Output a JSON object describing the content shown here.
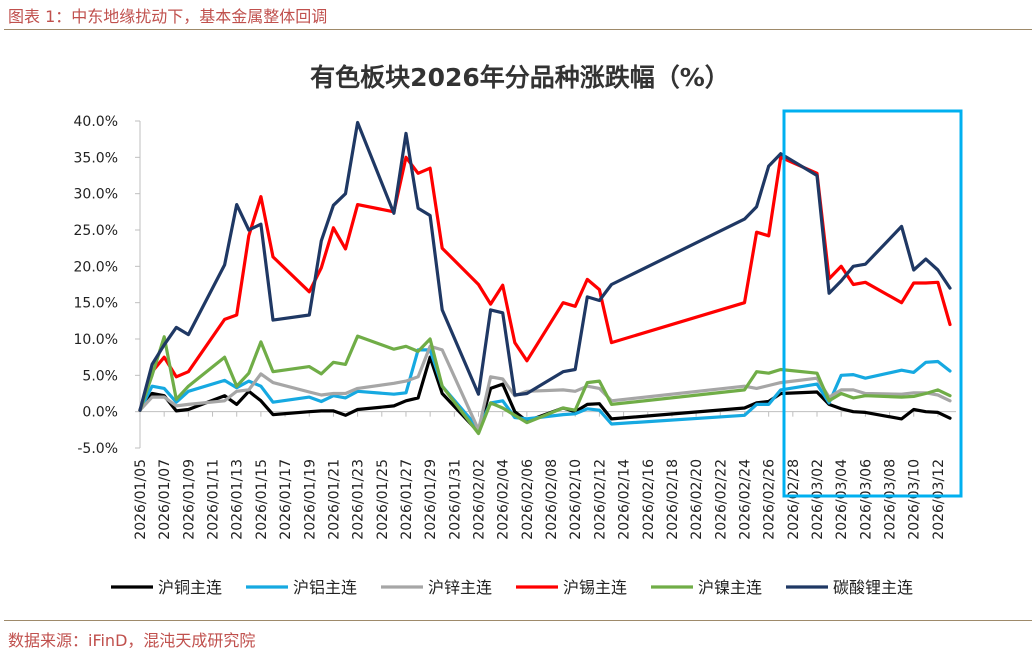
{
  "figure_title": "图表 1：中东地缘扰动下，基本金属整体回调",
  "source": "数据来源：iFinD，混沌天成研究院",
  "chart_data": {
    "type": "line",
    "title": "有色板块2026年分品种涨跌幅（%）",
    "xlabel": "",
    "ylabel": "",
    "ylim": [
      -5,
      40
    ],
    "y_ticks": [
      "40.0%",
      "35.0%",
      "30.0%",
      "25.0%",
      "20.0%",
      "15.0%",
      "10.0%",
      "5.0%",
      "0.0%",
      "-5.0%"
    ],
    "x_ticks": [
      "2026/01/05",
      "2026/01/07",
      "2026/01/09",
      "2026/01/11",
      "2026/01/13",
      "2026/01/15",
      "2026/01/17",
      "2026/01/19",
      "2026/01/21",
      "2026/01/23",
      "2026/01/25",
      "2026/01/27",
      "2026/01/29",
      "2026/01/31",
      "2026/02/02",
      "2026/02/04",
      "2026/02/06",
      "2026/02/08",
      "2026/02/10",
      "2026/02/12",
      "2026/02/14",
      "2026/02/16",
      "2026/02/18",
      "2026/02/20",
      "2026/02/22",
      "2026/02/24",
      "2026/02/26",
      "2026/02/28",
      "2026/03/02",
      "2026/03/04",
      "2026/03/06",
      "2026/03/08",
      "2026/03/10",
      "2026/03/12"
    ],
    "x_dates": [
      "2026/01/05",
      "2026/01/06",
      "2026/01/07",
      "2026/01/08",
      "2026/01/09",
      "2026/01/12",
      "2026/01/13",
      "2026/01/14",
      "2026/01/15",
      "2026/01/16",
      "2026/01/19",
      "2026/01/20",
      "2026/01/21",
      "2026/01/22",
      "2026/01/23",
      "2026/01/26",
      "2026/01/27",
      "2026/01/28",
      "2026/01/29",
      "2026/01/30",
      "2026/02/02",
      "2026/02/03",
      "2026/02/04",
      "2026/02/05",
      "2026/02/06",
      "2026/02/09",
      "2026/02/10",
      "2026/02/11",
      "2026/02/12",
      "2026/02/13",
      "2026/02/24",
      "2026/02/25",
      "2026/02/26",
      "2026/02/27",
      "2026/03/02",
      "2026/03/03",
      "2026/03/04",
      "2026/03/05",
      "2026/03/06",
      "2026/03/09",
      "2026/03/10",
      "2026/03/11",
      "2026/03/12",
      "2026/03/13"
    ],
    "series": [
      {
        "name": "沪铜主连",
        "color": "#000000",
        "values": [
          0.2,
          2.5,
          2.2,
          0.1,
          0.3,
          2.2,
          1.0,
          2.8,
          1.5,
          -0.4,
          0.0,
          0.1,
          0.1,
          -0.5,
          0.3,
          0.8,
          1.5,
          1.9,
          7.5,
          2.5,
          -2.8,
          3.2,
          3.8,
          0.0,
          -1.3,
          0.5,
          0.0,
          1.0,
          1.1,
          -1.0,
          0.5,
          1.2,
          1.4,
          2.5,
          2.7,
          1.0,
          0.4,
          0.0,
          -0.1,
          -1.0,
          0.3,
          0.0,
          -0.1,
          -0.9
        ]
      },
      {
        "name": "沪铝主连",
        "color": "#16a9e1",
        "values": [
          0.2,
          3.5,
          3.2,
          1.3,
          2.8,
          4.3,
          3.3,
          4.2,
          3.5,
          1.3,
          2.0,
          1.4,
          2.2,
          1.9,
          2.8,
          2.4,
          2.6,
          8.5,
          8.5,
          3.5,
          -2.3,
          1.2,
          1.5,
          -0.8,
          -1.0,
          -0.4,
          -0.3,
          0.4,
          0.2,
          -1.7,
          -0.5,
          1.0,
          1.0,
          3.0,
          3.8,
          1.2,
          5.0,
          5.1,
          4.6,
          5.7,
          5.4,
          6.8,
          6.9,
          5.6
        ]
      },
      {
        "name": "沪锌主连",
        "color": "#a6a6a6",
        "values": [
          0.2,
          2.0,
          2.0,
          0.8,
          1.0,
          1.5,
          2.8,
          3.0,
          5.2,
          4.0,
          2.7,
          2.3,
          2.5,
          2.5,
          3.2,
          3.9,
          4.2,
          4.8,
          9.0,
          8.5,
          -2.5,
          4.8,
          4.5,
          2.2,
          2.8,
          3.0,
          2.8,
          3.5,
          3.2,
          1.5,
          3.5,
          3.2,
          3.6,
          4.0,
          4.6,
          2.0,
          3.0,
          3.0,
          2.5,
          2.4,
          2.6,
          2.6,
          2.3,
          1.5
        ]
      },
      {
        "name": "沪锡主连",
        "color": "#ff0000",
        "values": [
          0.2,
          5.5,
          7.5,
          4.8,
          5.5,
          12.7,
          13.3,
          24.2,
          29.6,
          21.3,
          16.5,
          19.8,
          25.3,
          22.4,
          28.5,
          27.5,
          35.0,
          32.8,
          33.5,
          22.5,
          17.5,
          14.8,
          17.4,
          9.5,
          7.0,
          15.0,
          14.5,
          18.2,
          16.8,
          9.5,
          15.0,
          24.7,
          24.2,
          35.0,
          32.8,
          18.3,
          20.0,
          17.5,
          17.8,
          15.0,
          17.7,
          17.7,
          17.8,
          12.0
        ]
      },
      {
        "name": "沪镍主连",
        "color": "#70ad47",
        "values": [
          0.2,
          5.0,
          10.3,
          1.7,
          3.5,
          7.5,
          3.5,
          5.3,
          9.6,
          5.5,
          6.2,
          5.2,
          6.8,
          6.5,
          10.4,
          8.6,
          9.0,
          8.3,
          10.0,
          3.5,
          -3.0,
          1.2,
          0.5,
          -0.5,
          -1.5,
          0.5,
          0.2,
          4.0,
          4.2,
          1.0,
          3.0,
          5.5,
          5.3,
          5.8,
          5.3,
          1.5,
          2.5,
          1.9,
          2.2,
          2.0,
          2.1,
          2.5,
          3.0,
          2.2
        ]
      },
      {
        "name": "碳酸锂主连",
        "color": "#1f3864",
        "values": [
          0.2,
          6.5,
          9.2,
          11.6,
          10.6,
          20.2,
          28.5,
          25.0,
          25.8,
          12.6,
          13.3,
          23.5,
          28.4,
          30.0,
          39.8,
          27.3,
          38.3,
          28.0,
          27.0,
          14.0,
          2.4,
          14.0,
          13.6,
          2.3,
          2.5,
          5.5,
          5.8,
          15.8,
          15.3,
          17.5,
          26.5,
          28.2,
          33.8,
          35.5,
          32.5,
          16.3,
          18.0,
          20.0,
          20.3,
          25.5,
          19.5,
          21.0,
          19.5,
          17.0
        ]
      }
    ]
  }
}
